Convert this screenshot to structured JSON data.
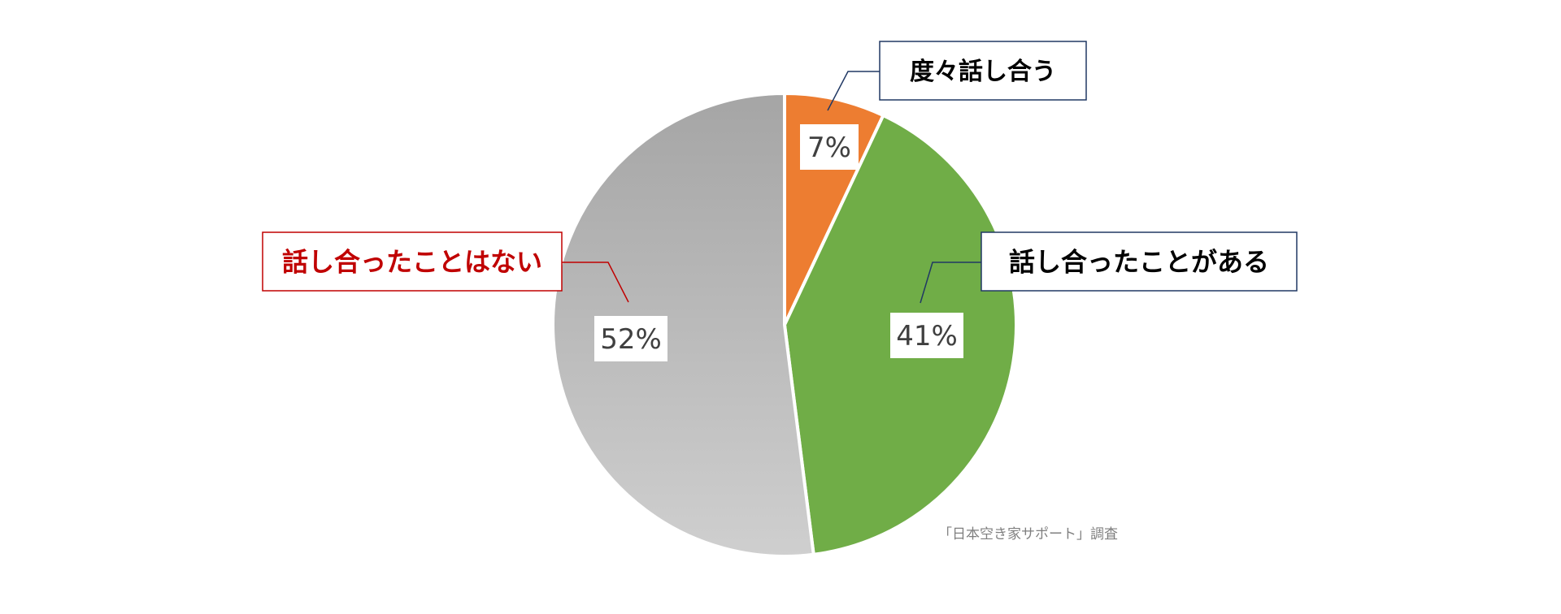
{
  "chart_data": {
    "type": "pie",
    "title": "",
    "start_angle_deg": 0,
    "direction": "clockwise",
    "slices": [
      {
        "label": "度々話し合う",
        "value": 7,
        "value_label": "7%",
        "color": "#ed7d31",
        "label_color": "#000000",
        "label_border": "#203864"
      },
      {
        "label": "話し合ったことがある",
        "value": 41,
        "value_label": "41%",
        "color": "#70ad47",
        "label_color": "#000000",
        "label_border": "#203864"
      },
      {
        "label": "話し合ったことはない",
        "value": 52,
        "value_label": "52%",
        "color_top": "#a5a5a5",
        "color_bottom": "#cfcfcf",
        "label_color": "#c00000",
        "label_border": "#c00000"
      }
    ],
    "source": "「日本空き家サポート」調査"
  }
}
